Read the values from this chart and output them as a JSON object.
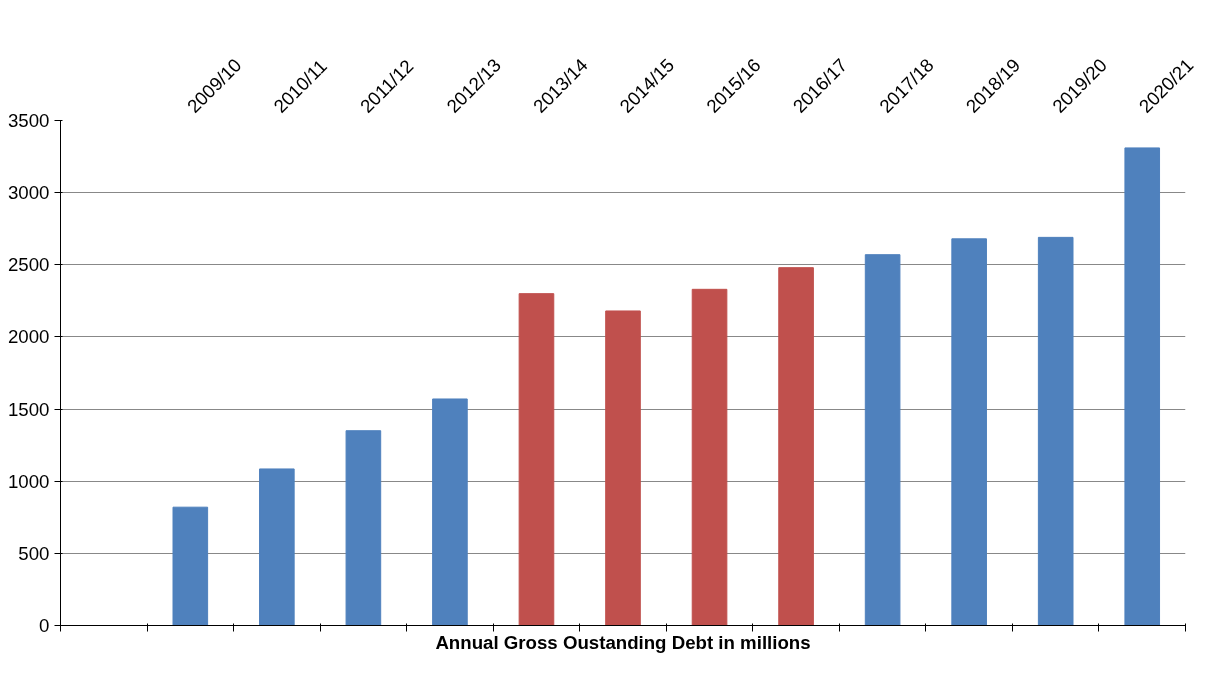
{
  "chart_data": {
    "type": "bar",
    "xlabel": "Annual Gross Oustanding Debt in millions",
    "categories": [
      null,
      "2009/10",
      "2010/11",
      "2011/12",
      "2012/13",
      "2013/14",
      "2014/15",
      "2015/16",
      "2016/17",
      "2017/18",
      "2018/19",
      "2019/20",
      "2020/21"
    ],
    "values": [
      null,
      820,
      1085,
      1350,
      1570,
      2300,
      2180,
      2330,
      2480,
      2570,
      2680,
      2690,
      3310
    ],
    "colors": [
      "#4f81bd",
      "#4f81bd",
      "#4f81bd",
      "#4f81bd",
      "#4f81bd",
      "#c0504d",
      "#c0504d",
      "#c0504d",
      "#c0504d",
      "#4f81bd",
      "#4f81bd",
      "#4f81bd",
      "#4f81bd"
    ],
    "ylim": [
      0,
      3500
    ],
    "yticks": [
      0,
      500,
      1000,
      1500,
      2000,
      2500,
      3000,
      3500
    ],
    "grid": "y"
  }
}
